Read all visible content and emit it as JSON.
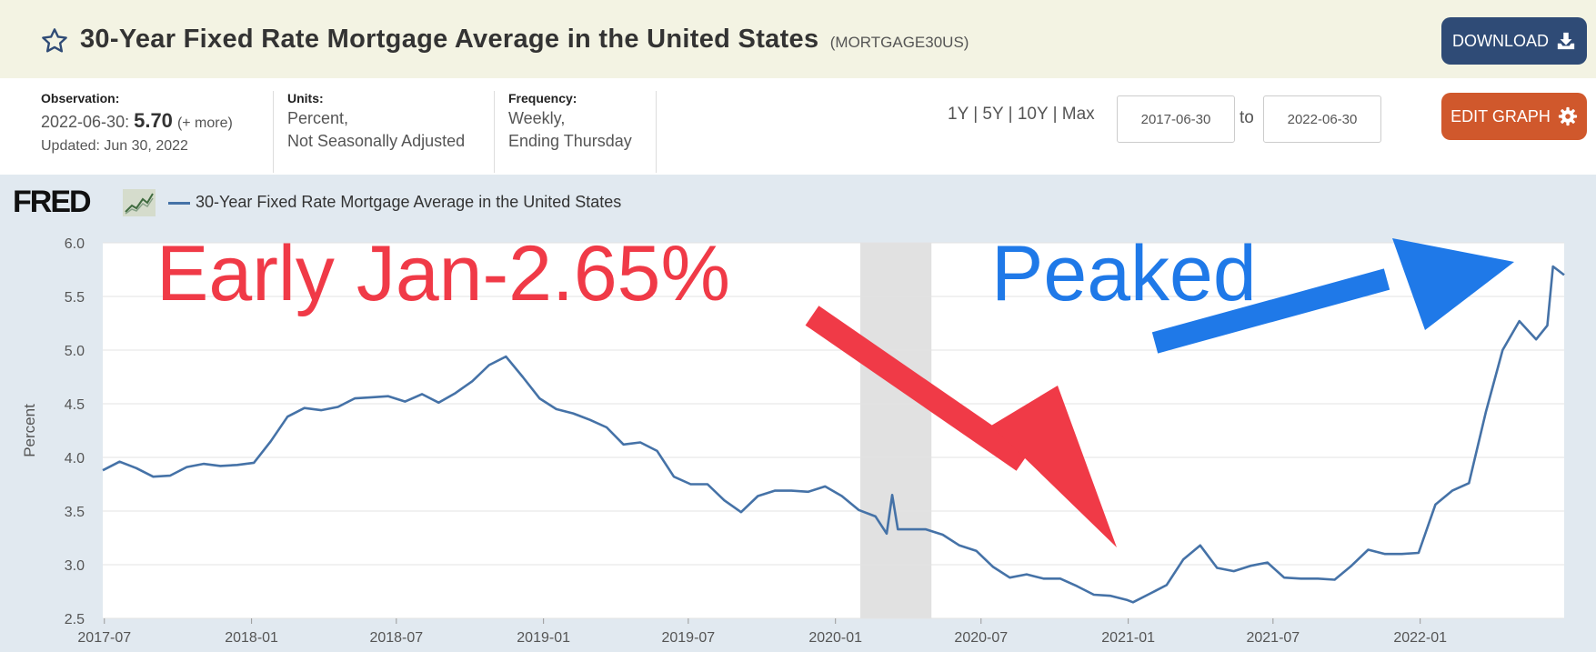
{
  "header": {
    "title": "30-Year Fixed Rate Mortgage Average in the United States",
    "series_id": "(MORTGAGE30US)",
    "download_label": "DOWNLOAD",
    "icon": "star-icon"
  },
  "meta": {
    "observation_label": "Observation:",
    "observation_date": "2022-06-30:",
    "observation_value": "5.70",
    "observation_more": "(+ more)",
    "updated": "Updated: Jun 30, 2022",
    "units_label": "Units:",
    "units_line1": "Percent,",
    "units_line2": "Not Seasonally Adjusted",
    "frequency_label": "Frequency:",
    "frequency_line1": "Weekly,",
    "frequency_line2": "Ending Thursday"
  },
  "controls": {
    "range_1y": "1Y",
    "range_5y": "5Y",
    "range_10y": "10Y",
    "range_max": "Max",
    "separator": "|",
    "from_date": "2017-06-30",
    "to_label": "to",
    "to_date": "2022-06-30",
    "edit_graph_label": "EDIT GRAPH"
  },
  "legend": {
    "logo_text": "FRED",
    "series_name": "30-Year Fixed Rate Mortgage Average in the United States"
  },
  "annotations": {
    "red_text": "Early Jan-2.65%",
    "blue_text": "Peaked",
    "red_color": "#f03a47",
    "blue_color": "#1f79e8"
  },
  "colors": {
    "line": "#4572a7",
    "header_bg": "#f3f3e3",
    "download_bg": "#2f4b76",
    "edit_bg": "#d0582c",
    "panel_bg": "#e1e9f0",
    "recession_band": "#e1e1e1"
  },
  "chart_data": {
    "type": "line",
    "title": "",
    "ylabel": "Percent",
    "xlabel": "",
    "ylim": [
      2.5,
      6.0
    ],
    "yticks": [
      2.5,
      3.0,
      3.5,
      4.0,
      4.5,
      5.0,
      5.5,
      6.0
    ],
    "ytick_labels": [
      "2.5",
      "3.0",
      "3.5",
      "4.0",
      "4.5",
      "5.0",
      "5.5",
      "6.0"
    ],
    "xlim": [
      "2017-06-29",
      "2022-06-30"
    ],
    "xticks": [
      "2017-07-01",
      "2018-01-01",
      "2018-07-01",
      "2019-01-01",
      "2019-07-01",
      "2020-01-01",
      "2020-07-01",
      "2021-01-01",
      "2021-07-01",
      "2022-01-01"
    ],
    "xtick_labels": [
      "2017-07",
      "2018-01",
      "2018-07",
      "2019-01",
      "2019-07",
      "2020-01",
      "2020-07",
      "2021-01",
      "2021-07",
      "2022-01"
    ],
    "grid": true,
    "legend_position": "top-left",
    "shaded_regions": [
      {
        "label": "recession",
        "start": "2020-02-01",
        "end": "2020-04-30"
      }
    ],
    "series": [
      {
        "name": "30-Year Fixed Rate Mortgage Average in the United States",
        "x": [
          "2017-06-29",
          "2017-07-20",
          "2017-08-10",
          "2017-08-31",
          "2017-09-21",
          "2017-10-12",
          "2017-11-02",
          "2017-11-23",
          "2017-12-14",
          "2018-01-04",
          "2018-01-25",
          "2018-02-15",
          "2018-03-08",
          "2018-03-29",
          "2018-04-19",
          "2018-05-10",
          "2018-05-31",
          "2018-06-21",
          "2018-07-12",
          "2018-08-02",
          "2018-08-23",
          "2018-09-13",
          "2018-10-04",
          "2018-10-25",
          "2018-11-15",
          "2018-12-06",
          "2018-12-27",
          "2019-01-17",
          "2019-02-07",
          "2019-02-28",
          "2019-03-21",
          "2019-04-11",
          "2019-05-02",
          "2019-05-23",
          "2019-06-13",
          "2019-07-04",
          "2019-07-25",
          "2019-08-15",
          "2019-09-05",
          "2019-09-26",
          "2019-10-17",
          "2019-11-07",
          "2019-11-28",
          "2019-12-19",
          "2020-01-09",
          "2020-01-30",
          "2020-02-20",
          "2020-03-05",
          "2020-03-12",
          "2020-03-19",
          "2020-04-02",
          "2020-04-23",
          "2020-05-14",
          "2020-06-04",
          "2020-06-25",
          "2020-07-16",
          "2020-08-06",
          "2020-08-27",
          "2020-09-17",
          "2020-10-08",
          "2020-10-29",
          "2020-11-19",
          "2020-12-10",
          "2020-12-31",
          "2021-01-07",
          "2021-01-28",
          "2021-02-18",
          "2021-03-11",
          "2021-04-01",
          "2021-04-22",
          "2021-05-13",
          "2021-06-03",
          "2021-06-24",
          "2021-07-15",
          "2021-08-05",
          "2021-08-26",
          "2021-09-16",
          "2021-10-07",
          "2021-10-28",
          "2021-11-18",
          "2021-12-09",
          "2021-12-30",
          "2022-01-20",
          "2022-02-10",
          "2022-03-03",
          "2022-03-24",
          "2022-04-14",
          "2022-05-05",
          "2022-05-26",
          "2022-06-09",
          "2022-06-16",
          "2022-06-30"
        ],
        "y": [
          3.88,
          3.96,
          3.9,
          3.82,
          3.83,
          3.91,
          3.94,
          3.92,
          3.93,
          3.95,
          4.15,
          4.38,
          4.46,
          4.44,
          4.47,
          4.55,
          4.56,
          4.57,
          4.52,
          4.59,
          4.51,
          4.6,
          4.71,
          4.86,
          4.94,
          4.75,
          4.55,
          4.45,
          4.41,
          4.35,
          4.28,
          4.12,
          4.14,
          4.06,
          3.82,
          3.75,
          3.75,
          3.6,
          3.49,
          3.64,
          3.69,
          3.69,
          3.68,
          3.73,
          3.64,
          3.51,
          3.45,
          3.29,
          3.65,
          3.33,
          3.33,
          3.33,
          3.28,
          3.18,
          3.13,
          2.98,
          2.88,
          2.91,
          2.87,
          2.87,
          2.8,
          2.72,
          2.71,
          2.67,
          2.65,
          2.73,
          2.81,
          3.05,
          3.18,
          2.97,
          2.94,
          2.99,
          3.02,
          2.88,
          2.87,
          2.87,
          2.86,
          2.99,
          3.14,
          3.1,
          3.1,
          3.11,
          3.56,
          3.69,
          3.76,
          4.42,
          5.0,
          5.27,
          5.1,
          5.23,
          5.78,
          5.7
        ]
      }
    ]
  }
}
